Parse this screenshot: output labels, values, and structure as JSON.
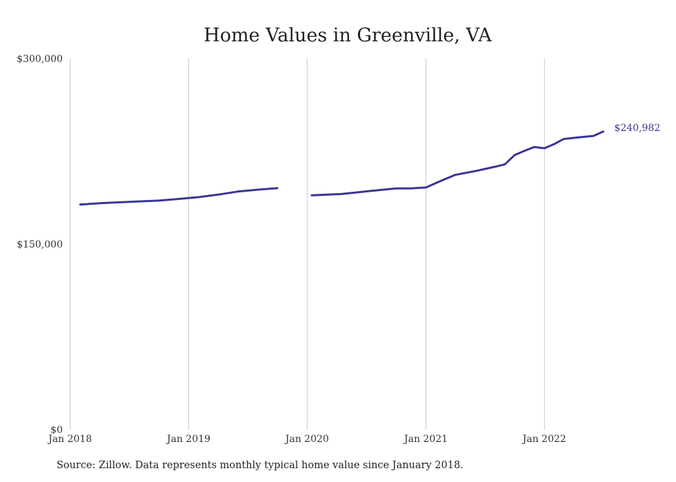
{
  "chart_data": {
    "type": "line",
    "title": "Home Values in Greenville, VA",
    "xlabel": "",
    "ylabel": "",
    "ylim": [
      0,
      300000
    ],
    "xlim": [
      "2017-11-20",
      "2022-08-20"
    ],
    "yticks": [
      {
        "value": 0,
        "label": "$0"
      },
      {
        "value": 150000,
        "label": "$150,000"
      },
      {
        "value": 300000,
        "label": "$300,000"
      }
    ],
    "xticks": [
      {
        "value": "2018-01-01",
        "label": "Jan 2018"
      },
      {
        "value": "2019-01-01",
        "label": "Jan 2019"
      },
      {
        "value": "2020-01-01",
        "label": "Jan 2020"
      },
      {
        "value": "2021-01-01",
        "label": "Jan 2021"
      },
      {
        "value": "2022-01-01",
        "label": "Jan 2022"
      }
    ],
    "grid": {
      "vertical": true,
      "horizontal": false
    },
    "line_color": "#3a3596",
    "end_label": "$240,982",
    "series": [
      {
        "segments": [
          [
            {
              "x": "2018-02-01",
              "y": 182000
            },
            {
              "x": "2018-04-01",
              "y": 183000
            },
            {
              "x": "2018-06-01",
              "y": 183800
            },
            {
              "x": "2018-08-01",
              "y": 184500
            },
            {
              "x": "2018-10-01",
              "y": 185200
            },
            {
              "x": "2018-12-01",
              "y": 186500
            },
            {
              "x": "2019-02-01",
              "y": 188000
            },
            {
              "x": "2019-04-01",
              "y": 190000
            },
            {
              "x": "2019-06-01",
              "y": 192500
            },
            {
              "x": "2019-08-01",
              "y": 194000
            },
            {
              "x": "2019-10-01",
              "y": 195200
            }
          ],
          [
            {
              "x": "2020-01-15",
              "y": 189500
            },
            {
              "x": "2020-04-15",
              "y": 190500
            },
            {
              "x": "2020-07-15",
              "y": 193000
            },
            {
              "x": "2020-10-01",
              "y": 195000
            },
            {
              "x": "2020-11-15",
              "y": 195000
            },
            {
              "x": "2021-01-01",
              "y": 195800
            },
            {
              "x": "2021-02-15",
              "y": 201000
            },
            {
              "x": "2021-04-01",
              "y": 206000
            },
            {
              "x": "2021-06-01",
              "y": 209000
            },
            {
              "x": "2021-08-01",
              "y": 212500
            },
            {
              "x": "2021-09-01",
              "y": 214500
            },
            {
              "x": "2021-10-01",
              "y": 222000
            },
            {
              "x": "2021-11-01",
              "y": 225500
            },
            {
              "x": "2021-12-01",
              "y": 228500
            },
            {
              "x": "2022-01-01",
              "y": 227500
            },
            {
              "x": "2022-02-01",
              "y": 231000
            },
            {
              "x": "2022-03-01",
              "y": 235000
            },
            {
              "x": "2022-04-15",
              "y": 236300
            },
            {
              "x": "2022-06-01",
              "y": 237500
            },
            {
              "x": "2022-07-01",
              "y": 240982
            }
          ]
        ]
      }
    ]
  },
  "source": "Source: Zillow. Data represents monthly typical home value since January 2018."
}
